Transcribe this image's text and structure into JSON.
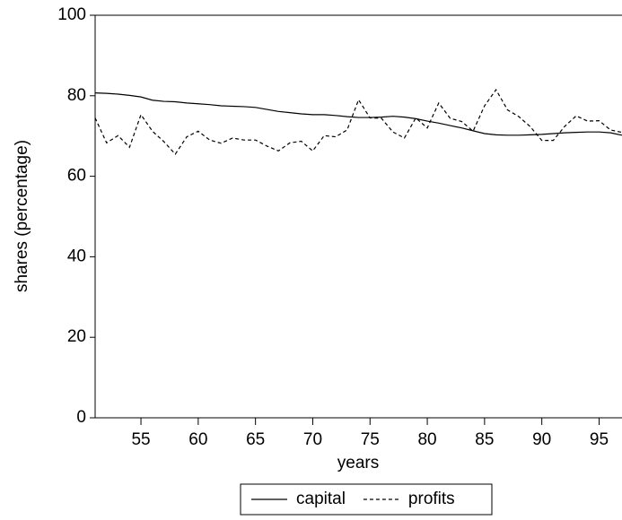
{
  "chart_data": {
    "type": "line",
    "y_label": "shares (percentage)",
    "x_label": "years",
    "x": [
      51,
      52,
      53,
      54,
      55,
      56,
      57,
      58,
      59,
      60,
      61,
      62,
      63,
      64,
      65,
      66,
      67,
      68,
      69,
      70,
      71,
      72,
      73,
      74,
      75,
      76,
      77,
      78,
      79,
      80,
      81,
      82,
      83,
      84,
      85,
      86,
      87,
      88,
      89,
      90,
      91,
      92,
      93,
      94,
      95,
      96,
      97
    ],
    "series": [
      {
        "name": "capital",
        "color": "#000000",
        "dash": "solid",
        "values": [
          80.7,
          80.6,
          80.4,
          80.1,
          79.7,
          78.9,
          78.6,
          78.5,
          78.2,
          78.0,
          77.8,
          77.5,
          77.4,
          77.3,
          77.1,
          76.6,
          76.1,
          75.8,
          75.5,
          75.3,
          75.3,
          75.1,
          74.8,
          74.6,
          74.6,
          74.7,
          74.9,
          74.7,
          74.3,
          73.7,
          73.2,
          72.6,
          72.0,
          71.3,
          70.6,
          70.3,
          70.2,
          70.2,
          70.3,
          70.4,
          70.6,
          70.8,
          70.9,
          71.0,
          71.0,
          70.8,
          70.2
        ]
      },
      {
        "name": "profits",
        "color": "#000000",
        "dash": "dashed",
        "values": [
          74.5,
          68.3,
          70.1,
          67.2,
          75.3,
          71.2,
          68.6,
          65.5,
          69.8,
          71.2,
          69.0,
          68.2,
          69.5,
          69.0,
          69.0,
          67.5,
          66.3,
          68.3,
          68.7,
          66.3,
          70.1,
          69.8,
          71.5,
          79.0,
          74.5,
          74.4,
          71.0,
          69.5,
          74.5,
          72.0,
          78.2,
          74.4,
          73.6,
          71.2,
          77.5,
          81.5,
          76.5,
          74.8,
          72.3,
          68.9,
          68.9,
          72.4,
          75.0,
          73.7,
          73.8,
          71.5,
          70.9
        ]
      }
    ],
    "xlim": [
      51,
      97
    ],
    "xticks": [
      55,
      60,
      65,
      70,
      75,
      80,
      85,
      90,
      95
    ],
    "ylim": [
      0,
      100
    ],
    "yticks": [
      0,
      20,
      40,
      60,
      80,
      100
    ],
    "legend": "bottom"
  }
}
